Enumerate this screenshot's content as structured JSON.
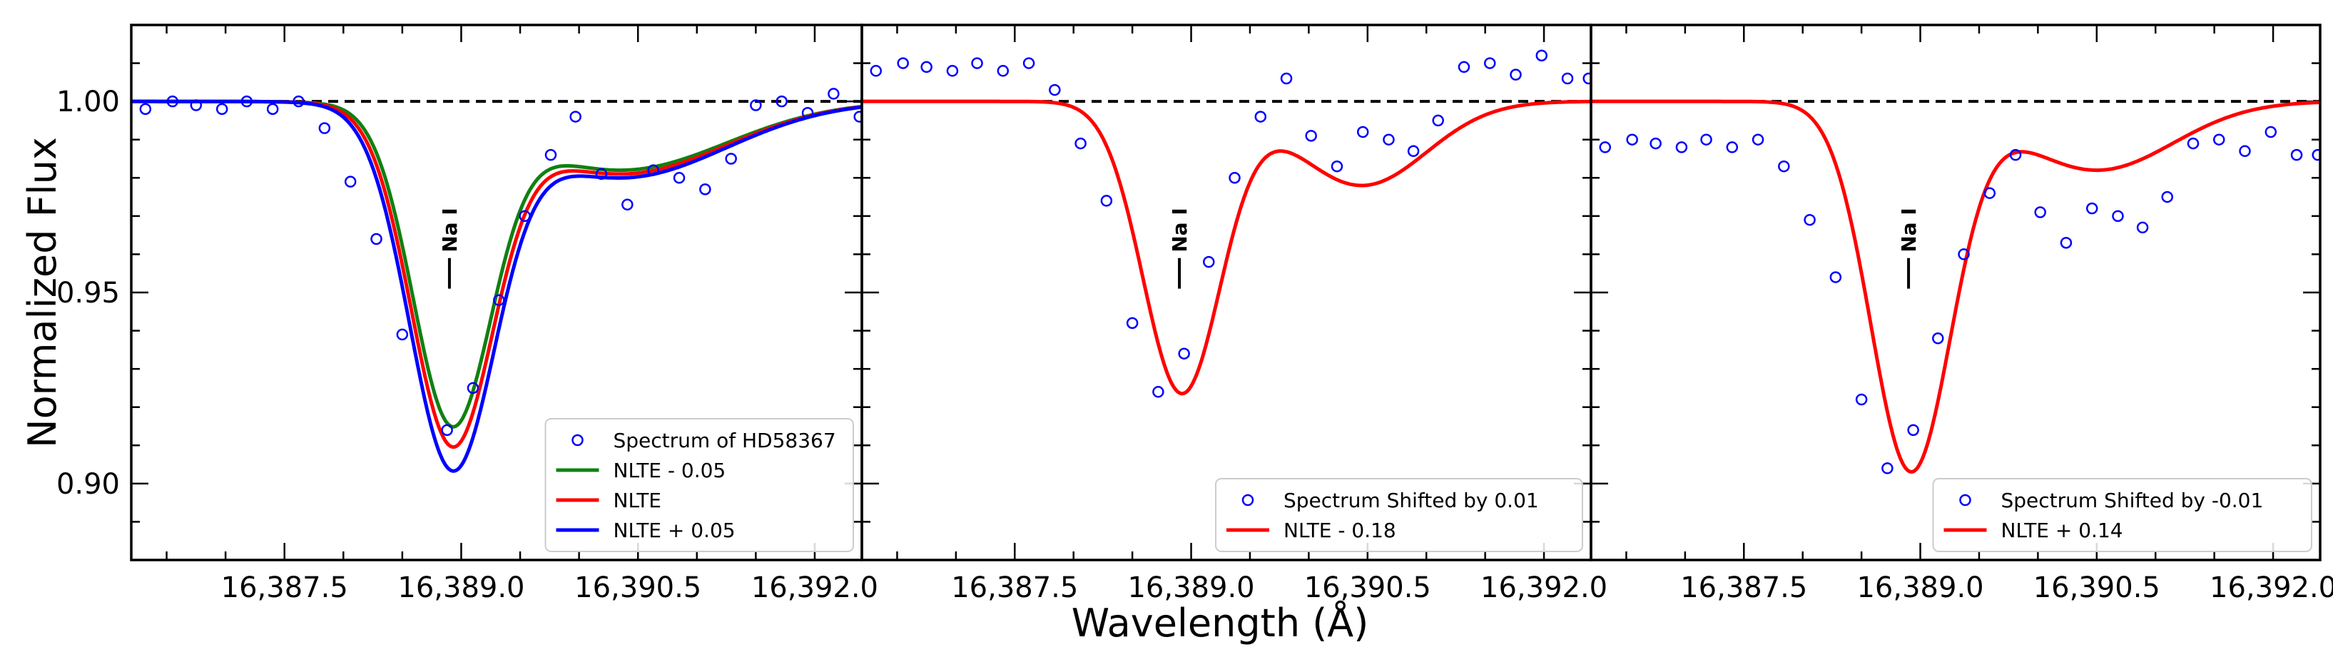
{
  "figure": {
    "ylabel": "Normalized Flux",
    "xlabel": "Wavelength (Å)"
  },
  "chart_data": [
    {
      "type": "line",
      "panel": "left",
      "xlim": [
        16386.2,
        16392.4
      ],
      "ylim": [
        0.88,
        1.02
      ],
      "xticks": [
        16387.5,
        16389.0,
        16390.5,
        16392.0
      ],
      "xtick_labels": [
        "16,387.5",
        "16,389.0",
        "16,390.5",
        "16,392.0"
      ],
      "yticks": [
        0.9,
        0.95,
        1.0
      ],
      "ytick_labels": [
        "0.90",
        "0.95",
        "1.00"
      ],
      "line_label": {
        "text": "Na I",
        "x": 16388.9,
        "y_range": [
          0.951,
          0.959
        ]
      },
      "continuum": 1.0,
      "legend_position": "lower-right",
      "observed": {
        "name": "Spectrum of HD58367",
        "color": "#0000ff",
        "x": [
          16386.32,
          16386.55,
          16386.75,
          16386.97,
          16387.18,
          16387.4,
          16387.62,
          16387.84,
          16388.06,
          16388.28,
          16388.5,
          16388.88,
          16389.1,
          16389.32,
          16389.54,
          16389.76,
          16389.97,
          16390.19,
          16390.41,
          16390.63,
          16390.85,
          16391.07,
          16391.29,
          16391.5,
          16391.72,
          16391.94,
          16392.16,
          16392.38
        ],
        "y": [
          0.998,
          1.0,
          0.999,
          0.998,
          1.0,
          0.998,
          1.0,
          0.993,
          0.979,
          0.964,
          0.939,
          0.914,
          0.925,
          0.948,
          0.97,
          0.986,
          0.996,
          0.981,
          0.973,
          0.982,
          0.98,
          0.977,
          0.985,
          0.999,
          1.0,
          0.997,
          1.002,
          0.996
        ]
      },
      "series": [
        {
          "name": "NLTE - 0.05",
          "color": "#118011",
          "model": {
            "center": 16388.92,
            "depth": 0.08,
            "width": 0.33,
            "secondary_center": 16390.35,
            "secondary_depth": 0.018,
            "secondary_width": 0.9
          }
        },
        {
          "name": "NLTE",
          "color": "#ff0000",
          "model": {
            "center": 16388.92,
            "depth": 0.085,
            "width": 0.345,
            "secondary_center": 16390.35,
            "secondary_depth": 0.019,
            "secondary_width": 0.9
          }
        },
        {
          "name": "NLTE + 0.05",
          "color": "#0000ff",
          "model": {
            "center": 16388.92,
            "depth": 0.091,
            "width": 0.36,
            "secondary_center": 16390.35,
            "secondary_depth": 0.02,
            "secondary_width": 0.9
          }
        }
      ]
    },
    {
      "type": "line",
      "panel": "middle",
      "xlim": [
        16386.2,
        16392.4
      ],
      "ylim": [
        0.88,
        1.02
      ],
      "xticks": [
        16387.5,
        16389.0,
        16390.5,
        16392.0
      ],
      "xtick_labels": [
        "16,387.5",
        "16,389.0",
        "16,390.5",
        "16,392.0"
      ],
      "yticks": [
        0.9,
        0.95,
        1.0
      ],
      "line_label": {
        "text": "Na I",
        "x": 16388.9,
        "y_range": [
          0.951,
          0.959
        ]
      },
      "continuum": 1.0,
      "legend_position": "lower-right",
      "observed": {
        "name": "Spectrum Shifted by 0.01",
        "color": "#0000ff",
        "x": [
          16386.32,
          16386.55,
          16386.75,
          16386.97,
          16387.18,
          16387.4,
          16387.62,
          16387.84,
          16388.06,
          16388.28,
          16388.5,
          16388.72,
          16388.94,
          16389.15,
          16389.37,
          16389.59,
          16389.81,
          16390.02,
          16390.24,
          16390.46,
          16390.68,
          16390.89,
          16391.1,
          16391.32,
          16391.54,
          16391.76,
          16391.98,
          16392.2,
          16392.38
        ],
        "y": [
          1.008,
          1.01,
          1.009,
          1.008,
          1.01,
          1.008,
          1.01,
          1.003,
          0.989,
          0.974,
          0.942,
          0.924,
          0.934,
          0.958,
          0.98,
          0.996,
          1.006,
          0.991,
          0.983,
          0.992,
          0.99,
          0.987,
          0.995,
          1.009,
          1.01,
          1.007,
          1.012,
          1.006,
          1.006
        ]
      },
      "series": [
        {
          "name": "NLTE - 0.18",
          "color": "#ff0000",
          "model": {
            "center": 16388.92,
            "depth": 0.076,
            "width": 0.33,
            "secondary_center": 16390.45,
            "secondary_depth": 0.022,
            "secondary_width": 0.55
          }
        }
      ]
    },
    {
      "type": "line",
      "panel": "right",
      "xlim": [
        16386.2,
        16392.4
      ],
      "ylim": [
        0.88,
        1.02
      ],
      "xticks": [
        16387.5,
        16389.0,
        16390.5,
        16392.0
      ],
      "xtick_labels": [
        "16,387.5",
        "16,389.0",
        "16,390.5",
        "16,392.0"
      ],
      "yticks": [
        0.9,
        0.95,
        1.0
      ],
      "line_label": {
        "text": "Na I",
        "x": 16388.9,
        "y_range": [
          0.951,
          0.959
        ]
      },
      "continuum": 1.0,
      "legend_position": "lower-right",
      "observed": {
        "name": "Spectrum Shifted by -0.01",
        "color": "#0000ff",
        "x": [
          16386.32,
          16386.55,
          16386.75,
          16386.97,
          16387.18,
          16387.4,
          16387.62,
          16387.84,
          16388.06,
          16388.28,
          16388.5,
          16388.72,
          16388.94,
          16389.15,
          16389.37,
          16389.59,
          16389.81,
          16390.02,
          16390.24,
          16390.46,
          16390.68,
          16390.89,
          16391.1,
          16391.32,
          16391.54,
          16391.76,
          16391.98,
          16392.2,
          16392.38
        ],
        "y": [
          0.988,
          0.99,
          0.989,
          0.988,
          0.99,
          0.988,
          0.99,
          0.983,
          0.969,
          0.954,
          0.922,
          0.904,
          0.914,
          0.938,
          0.96,
          0.976,
          0.986,
          0.971,
          0.963,
          0.972,
          0.97,
          0.967,
          0.975,
          0.989,
          0.99,
          0.987,
          0.992,
          0.986,
          0.986
        ]
      },
      "series": [
        {
          "name": "NLTE + 0.14",
          "color": "#ff0000",
          "model": {
            "center": 16388.92,
            "depth": 0.096,
            "width": 0.34,
            "secondary_center": 16390.5,
            "secondary_depth": 0.018,
            "secondary_width": 0.65
          }
        }
      ]
    }
  ]
}
